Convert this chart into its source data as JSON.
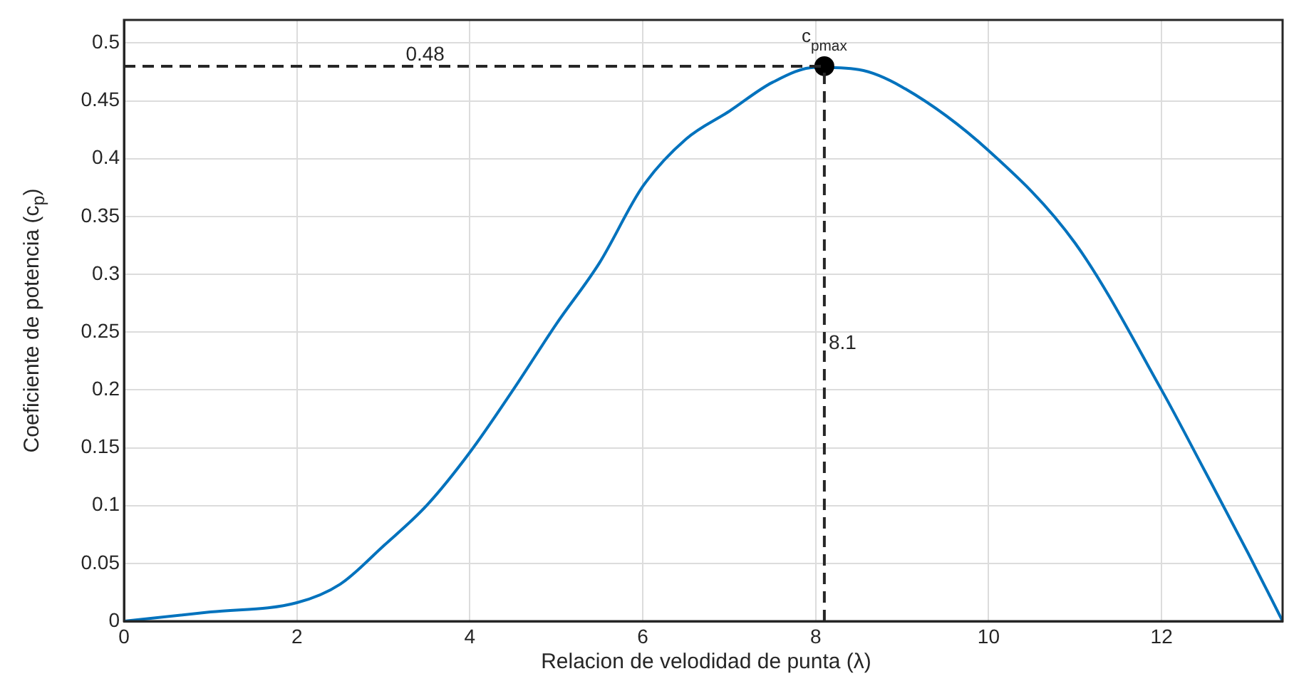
{
  "chart_data": {
    "type": "line",
    "xlabel": "Relacion de velodidad de punta  (λ)",
    "ylabel": "Coeficiente de potencia (c$_{p}$)",
    "xlim": [
      0,
      13.4
    ],
    "ylim": [
      0,
      0.52
    ],
    "xticks": [
      0,
      2,
      4,
      6,
      8,
      10,
      12
    ],
    "yticks": [
      0,
      0.05,
      0.1,
      0.15,
      0.2,
      0.25,
      0.3,
      0.35,
      0.4,
      0.45,
      0.5
    ],
    "grid": true,
    "marker": "none",
    "line_style": "solid",
    "series": [
      {
        "color": "#0072bd",
        "x": [
          0,
          1,
          2,
          2.5,
          3,
          3.5,
          4,
          4.5,
          5,
          5.5,
          6,
          6.5,
          7,
          7.5,
          8,
          8.5,
          9,
          10,
          11,
          12,
          12.5,
          13,
          13.4
        ],
        "values": [
          0,
          0.008,
          0.016,
          0.032,
          0.065,
          0.1,
          0.146,
          0.2,
          0.257,
          0.31,
          0.376,
          0.417,
          0.441,
          0.466,
          0.479,
          0.477,
          0.462,
          0.407,
          0.327,
          0.2,
          0.13,
          0.059,
          0
        ]
      },
      {
        "type": "scatter",
        "color": "#000000",
        "marker": "circle",
        "x": [
          8.1
        ],
        "values": [
          0.48
        ]
      }
    ],
    "ref_lines": [
      {
        "axis": "y",
        "value": 0.48,
        "label": "0.48",
        "color": "#262626",
        "line_style": "dashed"
      },
      {
        "axis": "x",
        "value": 8.1,
        "label": "8.1",
        "color": "#262626",
        "line_style": "dashed"
      }
    ],
    "annotations": [
      {
        "text": "c$_{pmax}$",
        "x": 8.1,
        "y": 0.48
      }
    ]
  }
}
